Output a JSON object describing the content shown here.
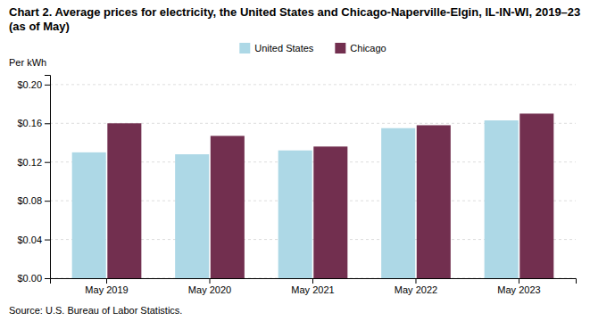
{
  "chart_data": {
    "type": "bar",
    "title": "Chart 2. Average prices for electricity, the United States and Chicago-Naperville-Elgin, IL-IN-WI, 2019–23 (as of May)",
    "y_label": "Per kWh",
    "source": "Source: U.S. Bureau of Labor Statistics.",
    "categories": [
      "May 2019",
      "May 2020",
      "May 2021",
      "May 2022",
      "May 2023"
    ],
    "series": [
      {
        "name": "United States",
        "color": "#ADD8E6",
        "values": [
          0.13,
          0.128,
          0.132,
          0.155,
          0.163
        ]
      },
      {
        "name": "Chicago",
        "color": "#722F4F",
        "values": [
          0.16,
          0.147,
          0.136,
          0.158,
          0.17
        ]
      }
    ],
    "ylim": [
      0,
      0.21
    ],
    "yticks": [
      {
        "value": 0.0,
        "label": "$0.00"
      },
      {
        "value": 0.04,
        "label": "$0.04"
      },
      {
        "value": 0.08,
        "label": "$0.08"
      },
      {
        "value": 0.12,
        "label": "$0.12"
      },
      {
        "value": 0.16,
        "label": "$0.16"
      },
      {
        "value": 0.2,
        "label": "$0.20"
      }
    ],
    "grid": true,
    "legend": "top"
  }
}
